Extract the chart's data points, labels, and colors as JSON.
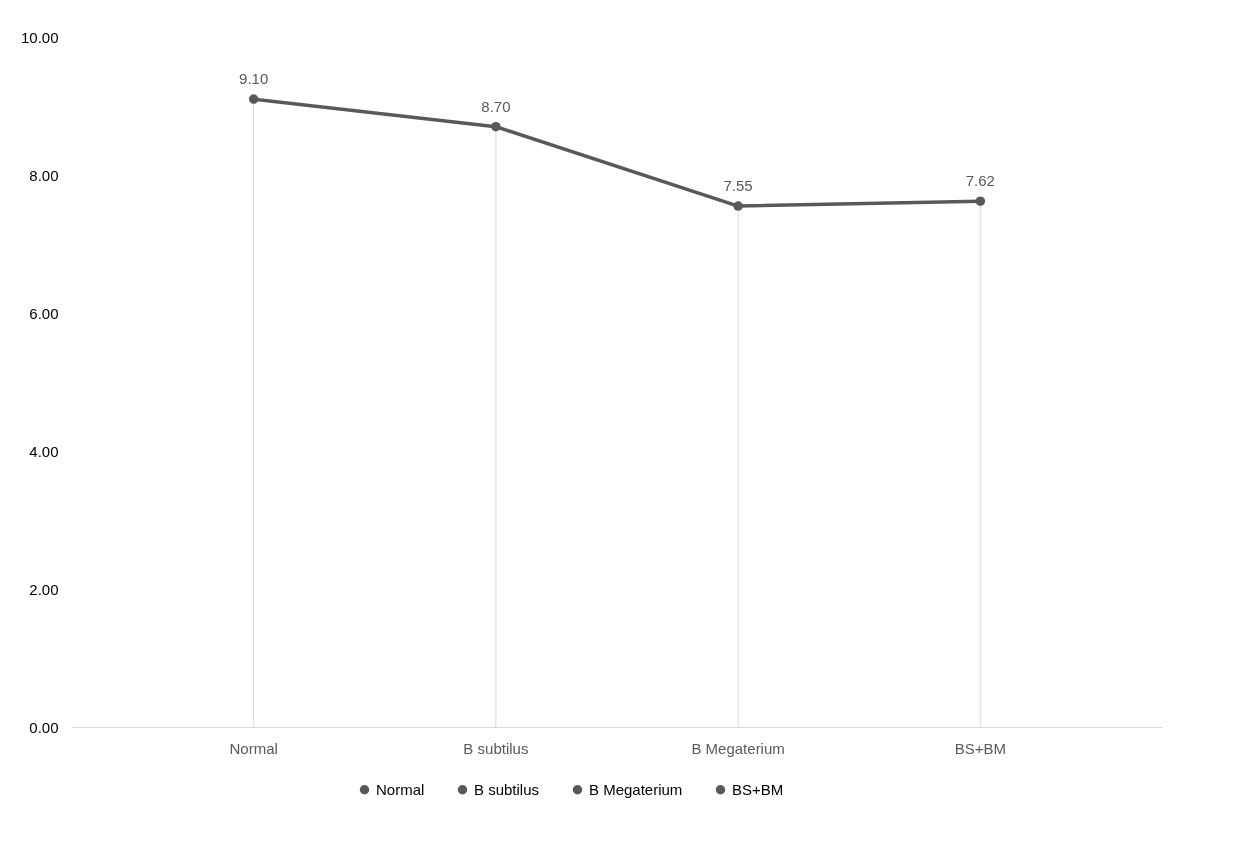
{
  "chart_data": {
    "type": "line",
    "categories": [
      "Normal",
      "B subtilus",
      "B Megaterium",
      "BS+BM"
    ],
    "series": [
      {
        "color": "#595959",
        "values": [
          9.1,
          8.7,
          7.55,
          7.62
        ],
        "value_labels": [
          "9.10",
          "8.70",
          "7.55",
          "7.62"
        ]
      },
      {
        "name": "Normal",
        "type": "scatter",
        "color": "#595959",
        "values": [
          9.1,
          null,
          null,
          null
        ]
      },
      {
        "name": "B subtilus",
        "type": "scatter",
        "color": "#595959",
        "values": [
          null,
          8.7,
          null,
          null
        ]
      },
      {
        "name": "B Megaterium",
        "type": "scatter",
        "color": "#595959",
        "values": [
          null,
          null,
          7.55,
          null
        ]
      },
      {
        "name": "BS+BM",
        "type": "scatter",
        "color": "#595959",
        "values": [
          null,
          null,
          null,
          7.62
        ]
      }
    ],
    "ylim": [
      0,
      10
    ],
    "yticks": [
      {
        "value": 0,
        "label": "0.00"
      },
      {
        "value": 2,
        "label": "2.00"
      },
      {
        "value": 4,
        "label": "4.00"
      },
      {
        "value": 6,
        "label": "6.00"
      },
      {
        "value": 8,
        "label": "8.00"
      },
      {
        "value": 10,
        "label": "10.00"
      }
    ],
    "grid": "x",
    "legend": "bottom",
    "marker": "circle",
    "line_style": "solid"
  }
}
